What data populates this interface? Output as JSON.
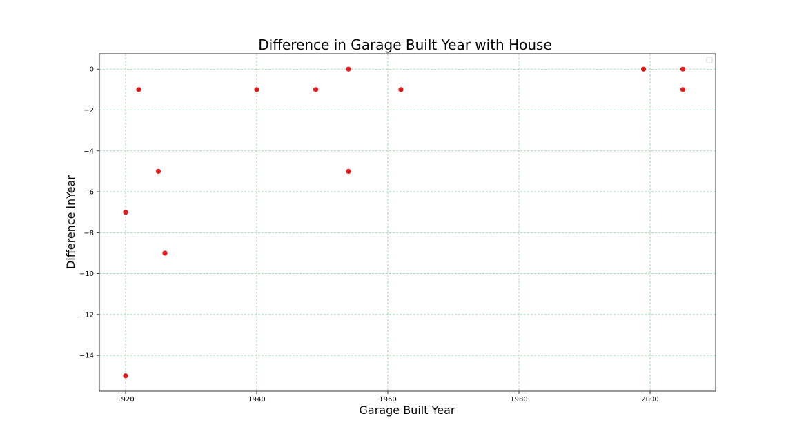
{
  "chart_data": {
    "type": "scatter",
    "title": "Difference in Garage Built Year with House",
    "xlabel": "Garage Built Year",
    "ylabel": "Difference inYear",
    "xlim": [
      1916,
      2010
    ],
    "ylim": [
      -15.75,
      0.75
    ],
    "xticks": [
      1920,
      1940,
      1960,
      1980,
      2000
    ],
    "yticks": [
      0,
      -2,
      -4,
      -6,
      -8,
      -10,
      -12,
      -14
    ],
    "grid": true,
    "legend": "top-right",
    "point_color": "#e31a1c",
    "grid_color": "#8fcf9f",
    "points": [
      {
        "x": 1920,
        "y": -7
      },
      {
        "x": 1920,
        "y": -15
      },
      {
        "x": 1922,
        "y": -1
      },
      {
        "x": 1925,
        "y": -5
      },
      {
        "x": 1926,
        "y": -9
      },
      {
        "x": 1940,
        "y": -1
      },
      {
        "x": 1949,
        "y": -1
      },
      {
        "x": 1954,
        "y": 0
      },
      {
        "x": 1954,
        "y": -5
      },
      {
        "x": 1962,
        "y": -1
      },
      {
        "x": 1999,
        "y": 0
      },
      {
        "x": 2005,
        "y": 0
      },
      {
        "x": 2005,
        "y": -1
      }
    ]
  }
}
